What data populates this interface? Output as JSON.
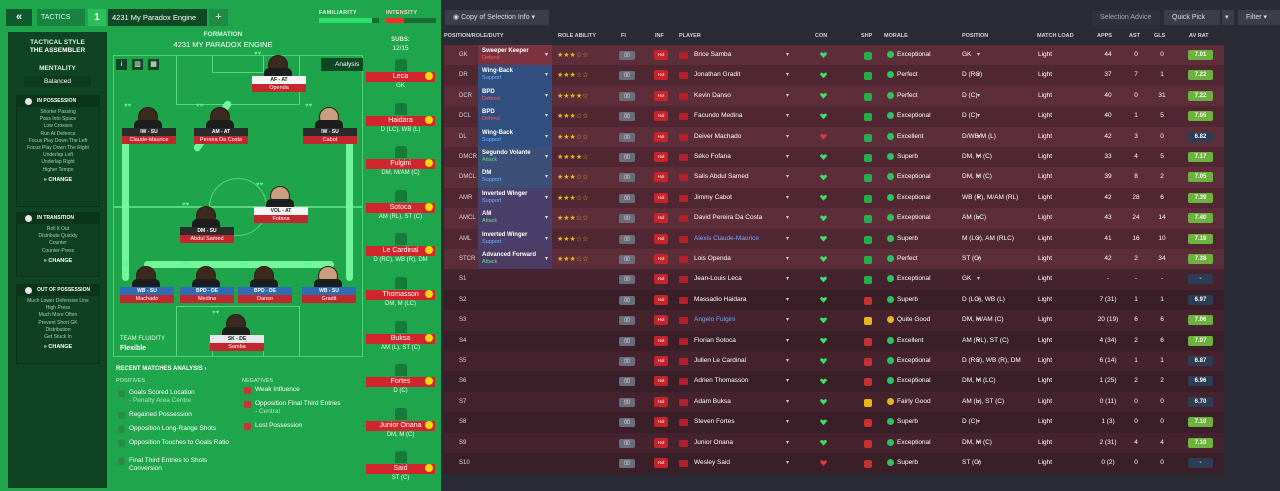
{
  "topbar": {
    "back": "«",
    "tactics": "TACTICS",
    "num": "1",
    "name": "4231 My Paradox Engine",
    "add": "+",
    "familiarity": "FAMILIARITY",
    "intensity": "INTENSITY",
    "intensity_level": 0.35
  },
  "style": {
    "title": "TACTICAL STYLE",
    "name": "THE ASSEMBLER",
    "mentality_h": "MENTALITY",
    "mentality": "Balanced",
    "possession_h": "IN POSSESSION",
    "possession": [
      "Shorter Passing",
      "Pass Into Space",
      "Low Crosses",
      "Run At Defence",
      "Focus Play Down The Left",
      "Focus Play Down The Right",
      "Underlap Left",
      "Underlap Right",
      "Higher Tempo"
    ],
    "transition_h": "IN TRANSITION",
    "transition": [
      "Roll It Out",
      "Distribute Quickly",
      "Counter",
      "Counter-Press"
    ],
    "out_h": "OUT OF POSSESSION",
    "out": [
      "Much Lower Defensive Line",
      "High Press",
      "Much More Often",
      "Prevent Short GK",
      "Distribution",
      "Get Stuck In"
    ],
    "change": "CHANGE"
  },
  "formation": {
    "label": "FORMATION",
    "name": "4231 MY PARADOX ENGINE",
    "subs_label": "SUBS:",
    "subs_count": "12/15",
    "analysis": "Analysis"
  },
  "pitch": [
    {
      "role": "AF - AT",
      "name": "Openda"
    },
    {
      "role": "IW - SU",
      "name": "Claude-Maurice"
    },
    {
      "role": "AM - AT",
      "name": "Pereira Da Costa"
    },
    {
      "role": "IW - SU",
      "name": "Cabot"
    },
    {
      "role": "DM - SU",
      "name": "Abdul Samed"
    },
    {
      "role": "VOL - AT",
      "name": "Fofana"
    },
    {
      "role": "WB - SU",
      "name": "Machado"
    },
    {
      "role": "BPD - DE",
      "name": "Medina"
    },
    {
      "role": "BPD - DE",
      "name": "Danso"
    },
    {
      "role": "WB - SU",
      "name": "Gradit"
    },
    {
      "role": "SK - DE",
      "name": "Samba"
    }
  ],
  "subs": [
    {
      "name": "Leca",
      "pos": "GK"
    },
    {
      "name": "Haidara",
      "pos": "D (LC), WB (L)"
    },
    {
      "name": "Fulgini",
      "pos": "DM, M/AM (C)"
    },
    {
      "name": "Sotoca",
      "pos": "AM (RL), ST (C)"
    },
    {
      "name": "Le Cardinal",
      "pos": "D (RC), WB (R), DM"
    },
    {
      "name": "Thomasson",
      "pos": "DM, M (LC)"
    },
    {
      "name": "Buksa",
      "pos": "AM (L), ST (C)"
    },
    {
      "name": "Fortes",
      "pos": "D (C)"
    },
    {
      "name": "Junior Onana",
      "pos": "DM, M (C)"
    },
    {
      "name": "Said",
      "pos": "ST (C)"
    }
  ],
  "fluidity": {
    "label": "TEAM FLUIDITY",
    "value": "Flexible"
  },
  "analysis": {
    "title": "RECENT MATCHES ANALYSIS",
    "positives_h": "POSITIVES",
    "negatives_h": "NEGATIVES",
    "positives": [
      {
        "t": "Goals Scored Location",
        "s": "- Penalty Area Centre"
      },
      {
        "t": "Regained Possession",
        "s": ""
      },
      {
        "t": "Opposition Long-Range Shots",
        "s": ""
      },
      {
        "t": "Opposition Touches to Goals Ratio",
        "s": ""
      },
      {
        "t": "Final Third Entries to Shots Conversion",
        "s": ""
      }
    ],
    "negatives": [
      {
        "t": "Weak Influence",
        "s": ""
      },
      {
        "t": "Opposition Final Third Entries",
        "s": "- Central"
      },
      {
        "t": "Lost Possession",
        "s": ""
      }
    ]
  },
  "right": {
    "copy": "Copy of Selection Info",
    "advice": "Selection Advice",
    "quick": "Quick Pick",
    "filter": "Filter",
    "headers": {
      "pos": "POSITION/ROLE/DUTY",
      "ab": "ROLE ABILITY",
      "fi": "FI",
      "inf": "INF",
      "player": "PLAYER",
      "con": "CON",
      "shp": "SHP",
      "morale": "MORALE",
      "position": "POSITION",
      "load": "MATCH LOAD",
      "apps": "APPS",
      "ast": "AST",
      "gls": "GLS",
      "rat": "AV RAT"
    }
  },
  "rows": [
    {
      "pos": "GK",
      "role": "Sweeper Keeper",
      "duty": "Defend",
      "stars": 3,
      "player": "Brice Samba",
      "morale": "Exceptional",
      "position": "GK",
      "load": "Light",
      "apps": "44",
      "ast": "0",
      "gls": "0",
      "rat": "7.01"
    },
    {
      "pos": "DR",
      "role": "Wing-Back",
      "duty": "Support",
      "stars": 3,
      "player": "Jonathan Gradit",
      "morale": "Perfect",
      "position": "D (RC)",
      "load": "Light",
      "apps": "37",
      "ast": "7",
      "gls": "1",
      "rat": "7.22"
    },
    {
      "pos": "DCR",
      "role": "BPD",
      "duty": "Defend",
      "stars": 4,
      "player": "Kevin Danso",
      "morale": "Perfect",
      "position": "D (C)",
      "load": "Light",
      "apps": "40",
      "ast": "0",
      "gls": "31",
      "rat": "7.22"
    },
    {
      "pos": "DCL",
      "role": "BPD",
      "duty": "Defend",
      "stars": 3,
      "player": "Facundo Medina",
      "morale": "Exceptional",
      "position": "D (C)",
      "load": "Light",
      "apps": "40",
      "ast": "1",
      "gls": "5",
      "rat": "7.05"
    },
    {
      "pos": "DL",
      "role": "Wing-Back",
      "duty": "Support",
      "stars": 3,
      "player": "Deiver Machado",
      "morale": "Excellent",
      "position": "D/WB/M (L)",
      "load": "Light",
      "apps": "42",
      "ast": "3",
      "gls": "0",
      "rat": "6.82"
    },
    {
      "pos": "DMCR",
      "role": "Segundo Volante",
      "duty": "Attack",
      "stars": 4,
      "player": "Séko Fofana",
      "morale": "Superb",
      "position": "DM, M (C)",
      "load": "Light",
      "apps": "33",
      "ast": "4",
      "gls": "5",
      "rat": "7.17"
    },
    {
      "pos": "DMCL",
      "role": "DM",
      "duty": "Support",
      "stars": 3,
      "player": "Salis Abdul Samed",
      "morale": "Exceptional",
      "position": "DM, M (C)",
      "load": "Light",
      "apps": "39",
      "ast": "8",
      "gls": "2",
      "rat": "7.05"
    },
    {
      "pos": "AMR",
      "role": "Inverted Winger",
      "duty": "Support",
      "stars": 3,
      "player": "Jimmy Cabot",
      "morale": "Exceptional",
      "position": "WB (R), M/AM (RL)",
      "load": "Light",
      "apps": "42",
      "ast": "28",
      "gls": "6",
      "rat": "7.39"
    },
    {
      "pos": "AMCL",
      "role": "AM",
      "duty": "Attack",
      "stars": 3,
      "player": "David Pereira Da Costa",
      "morale": "Exceptional",
      "position": "AM (LC)",
      "load": "Light",
      "apps": "43",
      "ast": "24",
      "gls": "14",
      "rat": "7.40"
    },
    {
      "pos": "AML",
      "role": "Inverted Winger",
      "duty": "Support",
      "stars": 3,
      "player": "Alexis Claude-Maurice",
      "morale": "Superb",
      "position": "M (LC), AM (RLC)",
      "load": "Light",
      "apps": "41",
      "ast": "16",
      "gls": "10",
      "rat": "7.16"
    },
    {
      "pos": "STCR",
      "role": "Advanced Forward",
      "duty": "Attack",
      "stars": 3,
      "player": "Lois Openda",
      "morale": "Perfect",
      "position": "ST (C)",
      "load": "Light",
      "apps": "42",
      "ast": "2",
      "gls": "34",
      "rat": "7.38"
    },
    {
      "pos": "S1",
      "player": "Jean-Louis Leca",
      "morale": "Exceptional",
      "position": "GK",
      "load": "Light",
      "apps": "-",
      "ast": "-",
      "gls": "-",
      "rat": "-"
    },
    {
      "pos": "S2",
      "player": "Massadio Haidara",
      "morale": "Superb",
      "position": "D (LC), WB (L)",
      "load": "Light",
      "apps": "7 (31)",
      "ast": "1",
      "gls": "1",
      "rat": "6.97"
    },
    {
      "pos": "S3",
      "player": "Angelo Fulgini",
      "morale": "Quite Good",
      "position": "DM, M/AM (C)",
      "load": "Light",
      "apps": "20 (19)",
      "ast": "6",
      "gls": "6",
      "rat": "7.06"
    },
    {
      "pos": "S4",
      "player": "Florian Sotoca",
      "morale": "Excellent",
      "position": "AM (RL), ST (C)",
      "load": "Light",
      "apps": "4 (34)",
      "ast": "2",
      "gls": "6",
      "rat": "7.07"
    },
    {
      "pos": "S5",
      "player": "Julien Le Cardinal",
      "morale": "Exceptional",
      "position": "D (RC), WB (R), DM",
      "load": "Light",
      "apps": "6 (14)",
      "ast": "1",
      "gls": "1",
      "rat": "6.87"
    },
    {
      "pos": "S6",
      "player": "Adrien Thomasson",
      "morale": "Exceptional",
      "position": "DM, M (LC)",
      "load": "Light",
      "apps": "1 (25)",
      "ast": "2",
      "gls": "2",
      "rat": "6.96"
    },
    {
      "pos": "S7",
      "player": "Adam Buksa",
      "morale": "Fairly Good",
      "position": "AM (L), ST (C)",
      "load": "Light",
      "apps": "0 (11)",
      "ast": "0",
      "gls": "0",
      "rat": "6.70"
    },
    {
      "pos": "S8",
      "player": "Steven Fortes",
      "morale": "Superb",
      "position": "D (C)",
      "load": "Light",
      "apps": "1 (3)",
      "ast": "0",
      "gls": "0",
      "rat": "7.10"
    },
    {
      "pos": "S9",
      "player": "Junior Onana",
      "morale": "Exceptional",
      "position": "DM, M (C)",
      "load": "Light",
      "apps": "2 (31)",
      "ast": "4",
      "gls": "4",
      "rat": "7.10"
    },
    {
      "pos": "S10",
      "player": "Wesley Said",
      "morale": "Superb",
      "position": "ST (C)",
      "load": "Light",
      "apps": "0 (2)",
      "ast": "0",
      "gls": "0",
      "rat": "-"
    }
  ],
  "colors": {
    "accent_green": "#1fa64c",
    "rating_green": "#6db23e",
    "injury_red": "#c7232b"
  },
  "icons": [
    "back-icon",
    "info-icon",
    "chart-icon",
    "squad-icon",
    "analysis-icon",
    "shirt-icon",
    "heart-icon",
    "flag-icon",
    "chevron-down-icon",
    "copy-icon"
  ]
}
